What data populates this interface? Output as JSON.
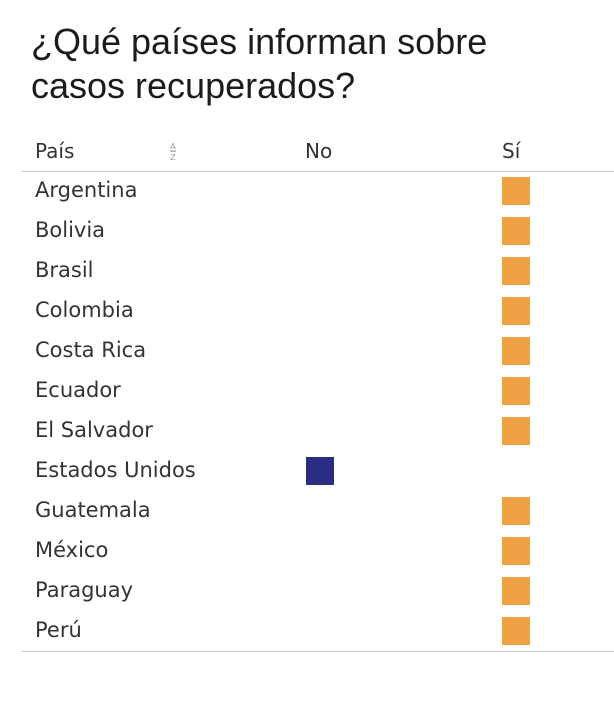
{
  "title": {
    "line1": "¿Qué países informan sobre",
    "line2": "casos recuperados?"
  },
  "chart_data": {
    "type": "table",
    "columns": {
      "country": "País",
      "no": "No",
      "yes": "Sí"
    },
    "sort_icon": "sort-alpha-ascending-icon",
    "colors": {
      "no": "#2b2d84",
      "yes": "#f0a143"
    },
    "rows": [
      {
        "country": "Argentina",
        "reports": "Sí"
      },
      {
        "country": "Bolivia",
        "reports": "Sí"
      },
      {
        "country": "Brasil",
        "reports": "Sí"
      },
      {
        "country": "Colombia",
        "reports": "Sí"
      },
      {
        "country": "Costa Rica",
        "reports": "Sí"
      },
      {
        "country": "Ecuador",
        "reports": "Sí"
      },
      {
        "country": "El Salvador",
        "reports": "Sí"
      },
      {
        "country": "Estados Unidos",
        "reports": "No"
      },
      {
        "country": "Guatemala",
        "reports": "Sí"
      },
      {
        "country": "México",
        "reports": "Sí"
      },
      {
        "country": "Paraguay",
        "reports": "Sí"
      },
      {
        "country": "Perú",
        "reports": "Sí"
      }
    ]
  }
}
